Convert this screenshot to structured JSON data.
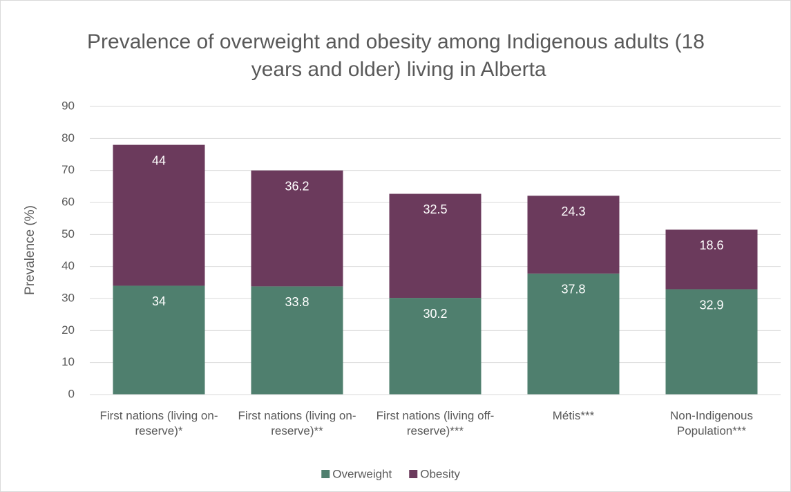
{
  "chart_data": {
    "type": "stacked_bar",
    "title": "Prevalence of overweight and obesity among Indigenous adults (18 years and older) living in Alberta",
    "y_label": "Prevalence (%)",
    "categories": [
      "First nations (living on-reserve)*",
      "First nations (living on-reserve)**",
      "First nations (living off-reserve)***",
      "Métis***",
      "Non-Indigenous Population***"
    ],
    "series": [
      {
        "name": "Overweight",
        "color": "#4f7f6e",
        "values": [
          34,
          33.8,
          30.2,
          37.8,
          32.9
        ]
      },
      {
        "name": "Obesity",
        "color": "#6b3a5c",
        "values": [
          44,
          36.2,
          32.5,
          24.3,
          18.6
        ]
      }
    ],
    "ylim": [
      0,
      90
    ],
    "yticks": [
      0,
      10,
      20,
      30,
      40,
      50,
      60,
      70,
      80,
      90
    ],
    "grid": true,
    "legend": "bottom"
  }
}
